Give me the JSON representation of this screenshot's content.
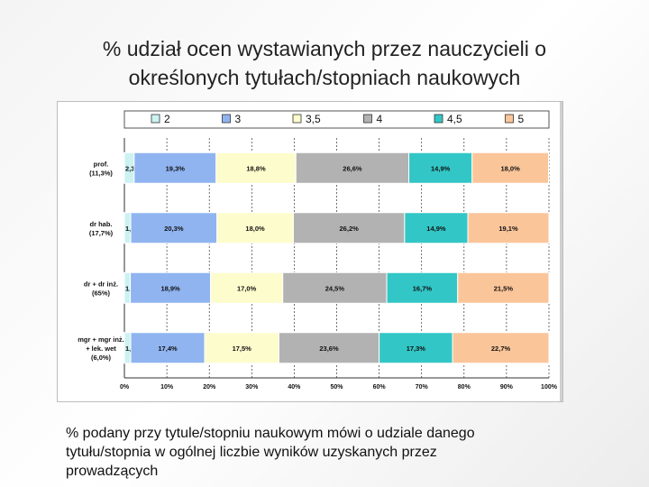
{
  "slide": {
    "title_line1": "% udział ocen wystawianych przez nauczycieli o",
    "title_line2": "określonych tytułach/stopniach naukowych",
    "footnote_line1": "% podany przy tytule/stopniu naukowym mówi o udziale danego",
    "footnote_line2": "tytułu/stopnia w ogólnej liczbie wyników uzyskanych przez",
    "footnote_line3": "prowadzących"
  },
  "chart_data": {
    "type": "bar",
    "orientation": "horizontal",
    "stacked": "percent",
    "legend_position": "top",
    "grid": true,
    "xlim": [
      0,
      100
    ],
    "x_ticks": [
      "0%",
      "10%",
      "20%",
      "30%",
      "40%",
      "50%",
      "60%",
      "70%",
      "80%",
      "90%",
      "100%"
    ],
    "categories": [
      [
        "prof.",
        "(11,3%)"
      ],
      [
        "dr hab.",
        "(17,7%)"
      ],
      [
        "dr + dr inż.",
        "(65%)"
      ],
      [
        "mgr + mgr inż.",
        "+ lek. wet",
        "(6,0%)"
      ]
    ],
    "series": [
      {
        "name": "2",
        "color": "#ccf2f2",
        "values": [
          2.3,
          1.5,
          1.4,
          1.5
        ],
        "labels": [
          "2,3%",
          "1,5%",
          "1,4%",
          "1,5%"
        ]
      },
      {
        "name": "3",
        "color": "#8fb4f0",
        "values": [
          19.3,
          20.3,
          18.9,
          17.4
        ],
        "labels": [
          "19,3%",
          "20,3%",
          "18,9%",
          "17,4%"
        ]
      },
      {
        "name": "3,5",
        "color": "#fdfccc",
        "values": [
          18.8,
          18.0,
          17.0,
          17.5
        ],
        "labels": [
          "18,8%",
          "18,0%",
          "17,0%",
          "17,5%"
        ]
      },
      {
        "name": "4",
        "color": "#b2b2b2",
        "values": [
          26.6,
          26.2,
          24.5,
          23.6
        ],
        "labels": [
          "26,6%",
          "26,2%",
          "24,5%",
          "23,6%"
        ]
      },
      {
        "name": "4,5",
        "color": "#33c6c6",
        "values": [
          14.9,
          14.9,
          16.7,
          17.3
        ],
        "labels": [
          "14,9%",
          "14,9%",
          "16,7%",
          "17,3%"
        ]
      },
      {
        "name": "5",
        "color": "#fbc59a",
        "values": [
          18.0,
          19.1,
          21.5,
          22.7
        ],
        "labels": [
          "18,0%",
          "19,1%",
          "21,5%",
          "22,7%"
        ]
      }
    ]
  }
}
